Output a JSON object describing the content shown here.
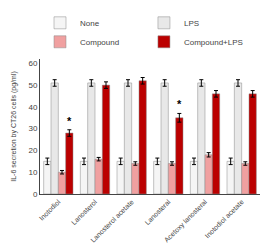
{
  "chart_data": {
    "type": "bar",
    "categories": [
      "Inotodiol",
      "Lanosterol",
      "Lanosterol acetate",
      "Lanosteral",
      "Acetoxy lanosteral",
      "Inotodiol acetate"
    ],
    "series": [
      {
        "name": "None",
        "color": "#f5f5f5",
        "values": [
          15,
          15,
          15,
          15,
          15,
          15
        ],
        "errors": [
          1.5,
          1.5,
          1.5,
          1.5,
          1.5,
          1.5
        ]
      },
      {
        "name": "LPS",
        "color": "#e8e8e8",
        "values": [
          51,
          51,
          51,
          51,
          51,
          51
        ],
        "errors": [
          1.5,
          1.5,
          1.5,
          1.5,
          1.5,
          1.5
        ]
      },
      {
        "name": "Compound",
        "color": "#f0a0a0",
        "values": [
          10,
          16,
          14,
          14,
          18,
          14
        ],
        "errors": [
          0.8,
          0.8,
          0.8,
          0.8,
          1.0,
          0.8
        ]
      },
      {
        "name": "Compound+LPS",
        "color": "#bb0000",
        "values": [
          28,
          50,
          52,
          35,
          46,
          46
        ],
        "errors": [
          1.5,
          1.5,
          1.5,
          2.0,
          1.5,
          1.5
        ]
      }
    ],
    "annotations": [
      {
        "text": "*",
        "category": "Inotodiol",
        "series": "Compound+LPS"
      },
      {
        "text": "*",
        "category": "Lanosteral",
        "series": "Compound+LPS"
      }
    ],
    "ylabel": "IL-6 secretion by CT26 cells (pg/ml)",
    "ylim": [
      0,
      62
    ],
    "yticks": [
      0,
      10,
      20,
      30,
      40,
      50,
      60
    ],
    "grid": false,
    "legend": "upper left"
  }
}
